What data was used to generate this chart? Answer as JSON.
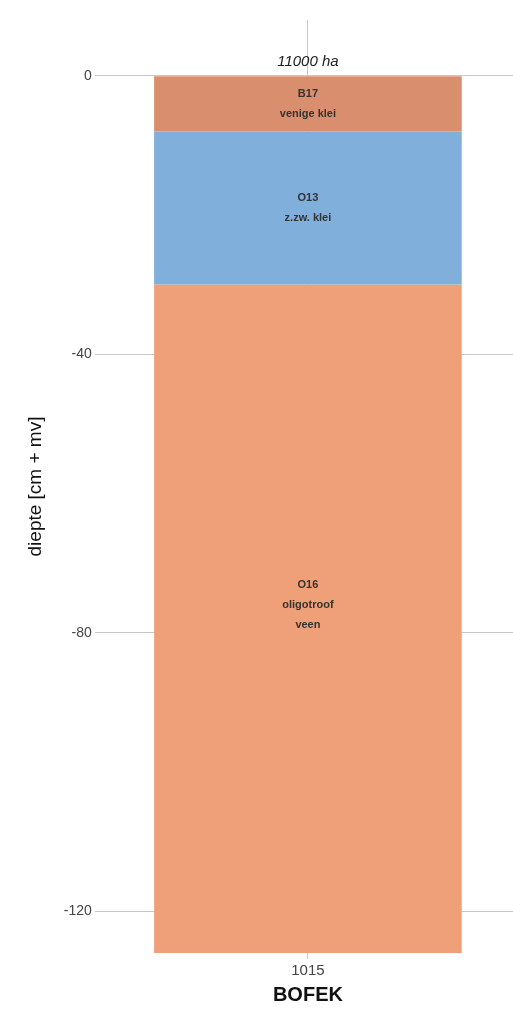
{
  "chart_data": {
    "type": "bar",
    "stacked": true,
    "xlabel": "BOFEK",
    "ylabel": "diepte [cm + mv]",
    "categories": [
      "1015"
    ],
    "series": [
      {
        "color": "#d98f6e",
        "values": [
          -8
        ]
      },
      {
        "color": "#7fafda",
        "values": [
          -22
        ]
      },
      {
        "color": "#f0a078",
        "values": [
          -96
        ]
      }
    ],
    "ylim": [
      -126,
      8
    ],
    "yticks": [
      0,
      -40,
      -80,
      -120
    ],
    "grid": true,
    "legend": false,
    "annotations": [
      "11000 ha",
      "B17\nvenige klei",
      "O13\nz.zw. klei",
      "O16\noligotroof\nveen"
    ]
  }
}
